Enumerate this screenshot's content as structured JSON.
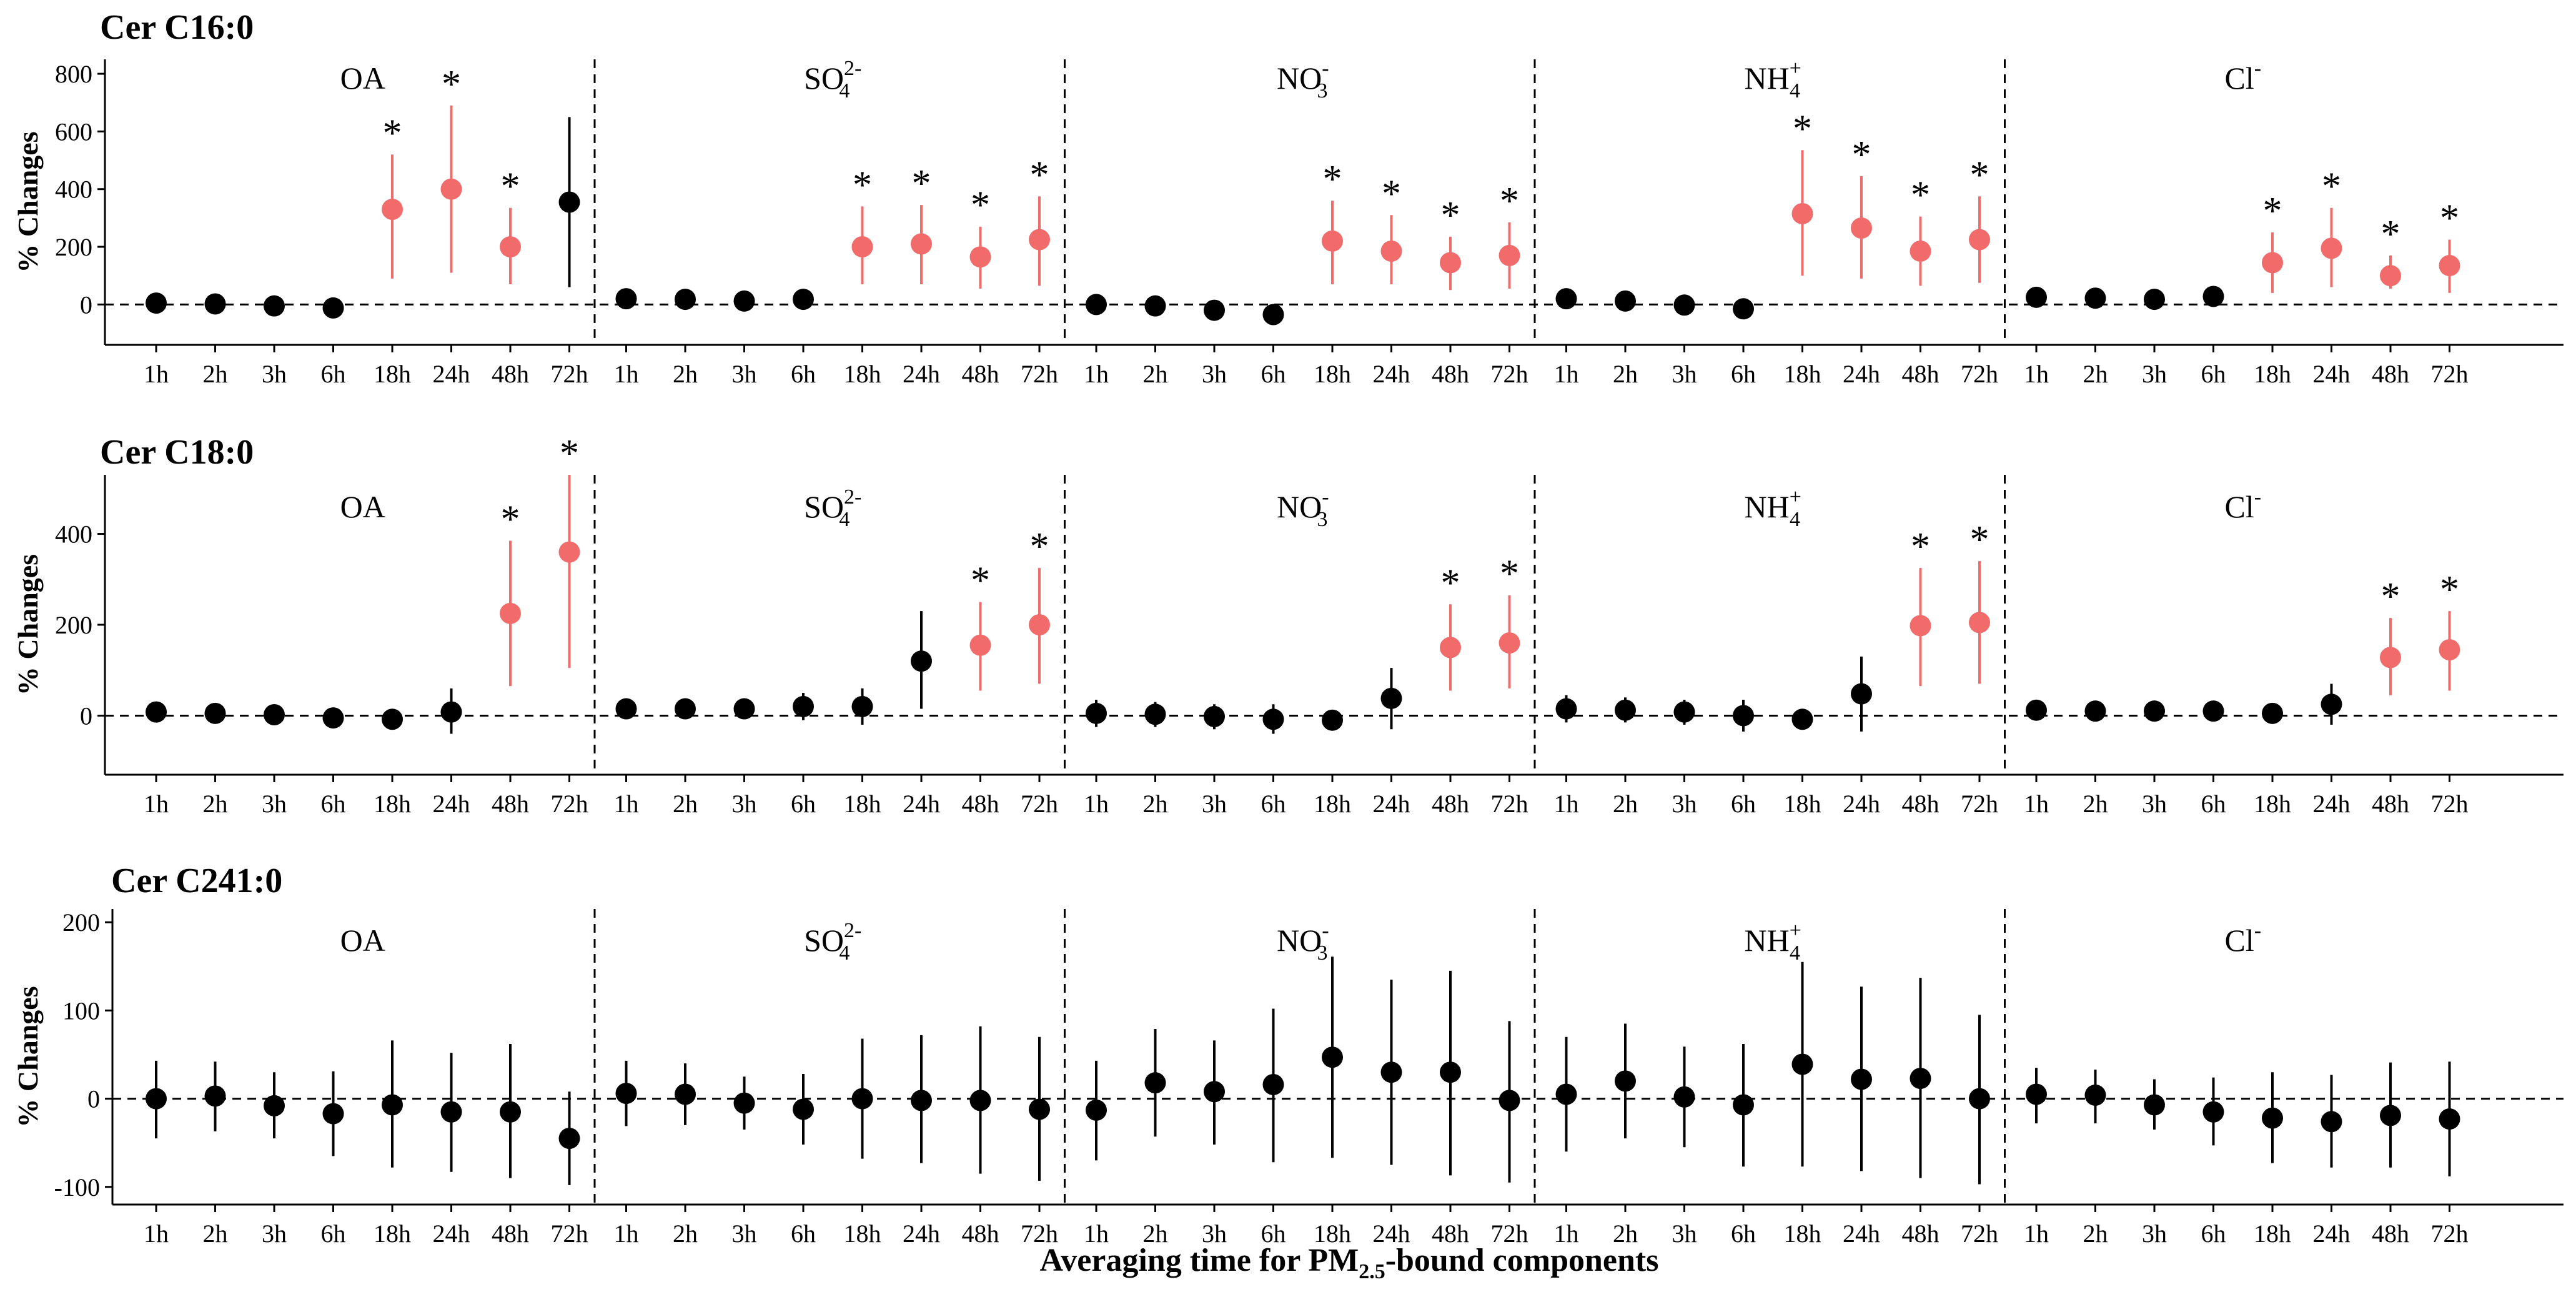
{
  "figure": {
    "xlabel": "Averaging time for PM2.5-bound components",
    "xlabel_main": "Averaging time for PM",
    "xlabel_sub": "2.5",
    "xlabel_tail": "-bound components",
    "colors": {
      "significant": "#f26b6b",
      "nonsignificant": "#000000"
    }
  },
  "chart_data": [
    {
      "type": "scatter",
      "title": "Cer C16:0",
      "ylabel": "% Changes",
      "ylim": [
        -140,
        850
      ],
      "yticks": [
        0,
        200,
        400,
        600,
        800
      ],
      "groups": [
        {
          "label": "OA",
          "base": "OA",
          "sub": "",
          "sup": ""
        },
        {
          "label": "SO42-",
          "base": "SO",
          "sub": "4",
          "sup": "2-"
        },
        {
          "label": "NO3-",
          "base": "NO",
          "sub": "3",
          "sup": "-"
        },
        {
          "label": "NH4+",
          "base": "NH",
          "sub": "4",
          "sup": "+"
        },
        {
          "label": "Cl-",
          "base": "Cl",
          "sub": "",
          "sup": "-"
        }
      ],
      "lags": [
        "1h",
        "2h",
        "3h",
        "6h",
        "18h",
        "24h",
        "48h",
        "72h"
      ],
      "star": "*",
      "series": [
        {
          "group": "OA",
          "estimate": [
            5,
            2,
            -5,
            -12,
            330,
            400,
            200,
            355
          ],
          "lower": [
            -5,
            -8,
            -15,
            -22,
            90,
            110,
            70,
            60
          ],
          "upper": [
            15,
            12,
            5,
            -2,
            520,
            690,
            335,
            650
          ],
          "significant": [
            false,
            false,
            false,
            false,
            true,
            true,
            true,
            false
          ]
        },
        {
          "group": "SO42-",
          "estimate": [
            20,
            18,
            12,
            18,
            200,
            210,
            165,
            225
          ],
          "lower": [
            10,
            8,
            2,
            8,
            70,
            70,
            55,
            65
          ],
          "upper": [
            30,
            28,
            22,
            28,
            340,
            345,
            270,
            375
          ],
          "significant": [
            false,
            false,
            false,
            false,
            true,
            true,
            true,
            true
          ]
        },
        {
          "group": "NO3-",
          "estimate": [
            0,
            -5,
            -20,
            -35,
            220,
            185,
            145,
            170
          ],
          "lower": [
            -10,
            -15,
            -30,
            -45,
            70,
            70,
            50,
            55
          ],
          "upper": [
            10,
            5,
            -10,
            -25,
            360,
            310,
            235,
            285
          ],
          "significant": [
            false,
            false,
            false,
            false,
            true,
            true,
            true,
            true
          ]
        },
        {
          "group": "NH4+",
          "estimate": [
            20,
            12,
            -2,
            -15,
            315,
            265,
            185,
            225
          ],
          "lower": [
            0,
            -5,
            -12,
            -25,
            100,
            90,
            65,
            75
          ],
          "upper": [
            40,
            30,
            8,
            -5,
            535,
            445,
            305,
            375
          ],
          "significant": [
            false,
            false,
            false,
            false,
            true,
            true,
            true,
            true
          ]
        },
        {
          "group": "Cl-",
          "estimate": [
            25,
            22,
            18,
            28,
            145,
            195,
            100,
            135
          ],
          "lower": [
            15,
            12,
            8,
            18,
            40,
            60,
            55,
            40
          ],
          "upper": [
            35,
            32,
            28,
            38,
            250,
            335,
            170,
            225
          ],
          "significant": [
            false,
            false,
            false,
            false,
            true,
            true,
            true,
            true
          ]
        }
      ]
    },
    {
      "type": "scatter",
      "title": "Cer C18:0",
      "ylabel": "% Changes",
      "ylim": [
        -130,
        530
      ],
      "yticks": [
        0,
        200,
        400
      ],
      "groups": [
        {
          "label": "OA",
          "base": "OA",
          "sub": "",
          "sup": ""
        },
        {
          "label": "SO42-",
          "base": "SO",
          "sub": "4",
          "sup": "2-"
        },
        {
          "label": "NO3-",
          "base": "NO",
          "sub": "3",
          "sup": "-"
        },
        {
          "label": "NH4+",
          "base": "NH",
          "sub": "4",
          "sup": "+"
        },
        {
          "label": "Cl-",
          "base": "Cl",
          "sub": "",
          "sup": "-"
        }
      ],
      "lags": [
        "1h",
        "2h",
        "3h",
        "6h",
        "18h",
        "24h",
        "48h",
        "72h"
      ],
      "star": "*",
      "series": [
        {
          "group": "OA",
          "estimate": [
            8,
            5,
            2,
            -5,
            -8,
            8,
            225,
            360
          ],
          "lower": [
            -2,
            -5,
            -8,
            -25,
            -30,
            -40,
            65,
            105
          ],
          "upper": [
            18,
            15,
            12,
            15,
            14,
            60,
            385,
            530
          ],
          "significant": [
            false,
            false,
            false,
            false,
            false,
            false,
            true,
            true
          ]
        },
        {
          "group": "SO42-",
          "estimate": [
            15,
            15,
            15,
            20,
            20,
            120,
            155,
            200
          ],
          "lower": [
            5,
            5,
            5,
            -10,
            -20,
            15,
            55,
            70
          ],
          "upper": [
            25,
            25,
            25,
            50,
            60,
            230,
            250,
            325
          ],
          "significant": [
            false,
            false,
            false,
            false,
            false,
            false,
            true,
            true
          ]
        },
        {
          "group": "NO3-",
          "estimate": [
            5,
            3,
            -2,
            -8,
            -10,
            38,
            150,
            160
          ],
          "lower": [
            -25,
            -25,
            -30,
            -40,
            -30,
            -30,
            55,
            60
          ],
          "upper": [
            35,
            30,
            25,
            25,
            12,
            105,
            245,
            265
          ],
          "significant": [
            false,
            false,
            false,
            false,
            false,
            false,
            true,
            true
          ]
        },
        {
          "group": "NH4+",
          "estimate": [
            15,
            12,
            8,
            0,
            -8,
            48,
            198,
            205
          ],
          "lower": [
            -15,
            -15,
            -20,
            -35,
            -30,
            -35,
            65,
            70
          ],
          "upper": [
            45,
            40,
            35,
            35,
            15,
            130,
            325,
            340
          ],
          "significant": [
            false,
            false,
            false,
            false,
            false,
            false,
            true,
            true
          ]
        },
        {
          "group": "Cl-",
          "estimate": [
            12,
            10,
            10,
            10,
            5,
            25,
            128,
            145
          ],
          "lower": [
            2,
            0,
            0,
            0,
            -15,
            -20,
            45,
            55
          ],
          "upper": [
            22,
            20,
            20,
            20,
            25,
            70,
            215,
            230
          ],
          "significant": [
            false,
            false,
            false,
            false,
            false,
            false,
            true,
            true
          ]
        }
      ]
    },
    {
      "type": "scatter",
      "title": "Cer C241:0",
      "ylabel": "% Changes",
      "ylim": [
        -120,
        215
      ],
      "yticks": [
        -100,
        0,
        100,
        200
      ],
      "groups": [
        {
          "label": "OA",
          "base": "OA",
          "sub": "",
          "sup": ""
        },
        {
          "label": "SO42-",
          "base": "SO",
          "sub": "4",
          "sup": "2-"
        },
        {
          "label": "NO3-",
          "base": "NO",
          "sub": "3",
          "sup": "-"
        },
        {
          "label": "NH4+",
          "base": "NH",
          "sub": "4",
          "sup": "+"
        },
        {
          "label": "Cl-",
          "base": "Cl",
          "sub": "",
          "sup": "-"
        }
      ],
      "lags": [
        "1h",
        "2h",
        "3h",
        "6h",
        "18h",
        "24h",
        "48h",
        "72h"
      ],
      "star": "*",
      "series": [
        {
          "group": "OA",
          "estimate": [
            0,
            3,
            -8,
            -17,
            -7,
            -15,
            -15,
            -45
          ],
          "lower": [
            -45,
            -37,
            -45,
            -65,
            -78,
            -83,
            -90,
            -98
          ],
          "upper": [
            43,
            42,
            30,
            31,
            66,
            52,
            62,
            8
          ],
          "significant": [
            false,
            false,
            false,
            false,
            false,
            false,
            false,
            false
          ]
        },
        {
          "group": "SO42-",
          "estimate": [
            6,
            5,
            -5,
            -12,
            0,
            -2,
            -2,
            -12
          ],
          "lower": [
            -31,
            -30,
            -35,
            -52,
            -68,
            -73,
            -85,
            -93
          ],
          "upper": [
            43,
            40,
            25,
            28,
            68,
            72,
            82,
            70
          ],
          "significant": [
            false,
            false,
            false,
            false,
            false,
            false,
            false,
            false
          ]
        },
        {
          "group": "NO3-",
          "estimate": [
            -13,
            18,
            8,
            16,
            47,
            30,
            30,
            -2
          ],
          "lower": [
            -70,
            -43,
            -52,
            -72,
            -67,
            -75,
            -87,
            -95
          ],
          "upper": [
            43,
            79,
            66,
            102,
            161,
            135,
            145,
            88
          ],
          "significant": [
            false,
            false,
            false,
            false,
            false,
            false,
            false,
            false
          ]
        },
        {
          "group": "NH4+",
          "estimate": [
            5,
            20,
            2,
            -7,
            39,
            22,
            23,
            0
          ],
          "lower": [
            -60,
            -45,
            -55,
            -77,
            -77,
            -82,
            -90,
            -97
          ],
          "upper": [
            70,
            85,
            59,
            62,
            155,
            127,
            137,
            95
          ],
          "significant": [
            false,
            false,
            false,
            false,
            false,
            false,
            false,
            false
          ]
        },
        {
          "group": "Cl-",
          "estimate": [
            5,
            4,
            -7,
            -15,
            -22,
            -26,
            -19,
            -23
          ],
          "lower": [
            -28,
            -28,
            -35,
            -53,
            -73,
            -78,
            -78,
            -88
          ],
          "upper": [
            35,
            33,
            22,
            24,
            30,
            27,
            41,
            42
          ],
          "significant": [
            false,
            false,
            false,
            false,
            false,
            false,
            false,
            false
          ]
        }
      ]
    }
  ]
}
